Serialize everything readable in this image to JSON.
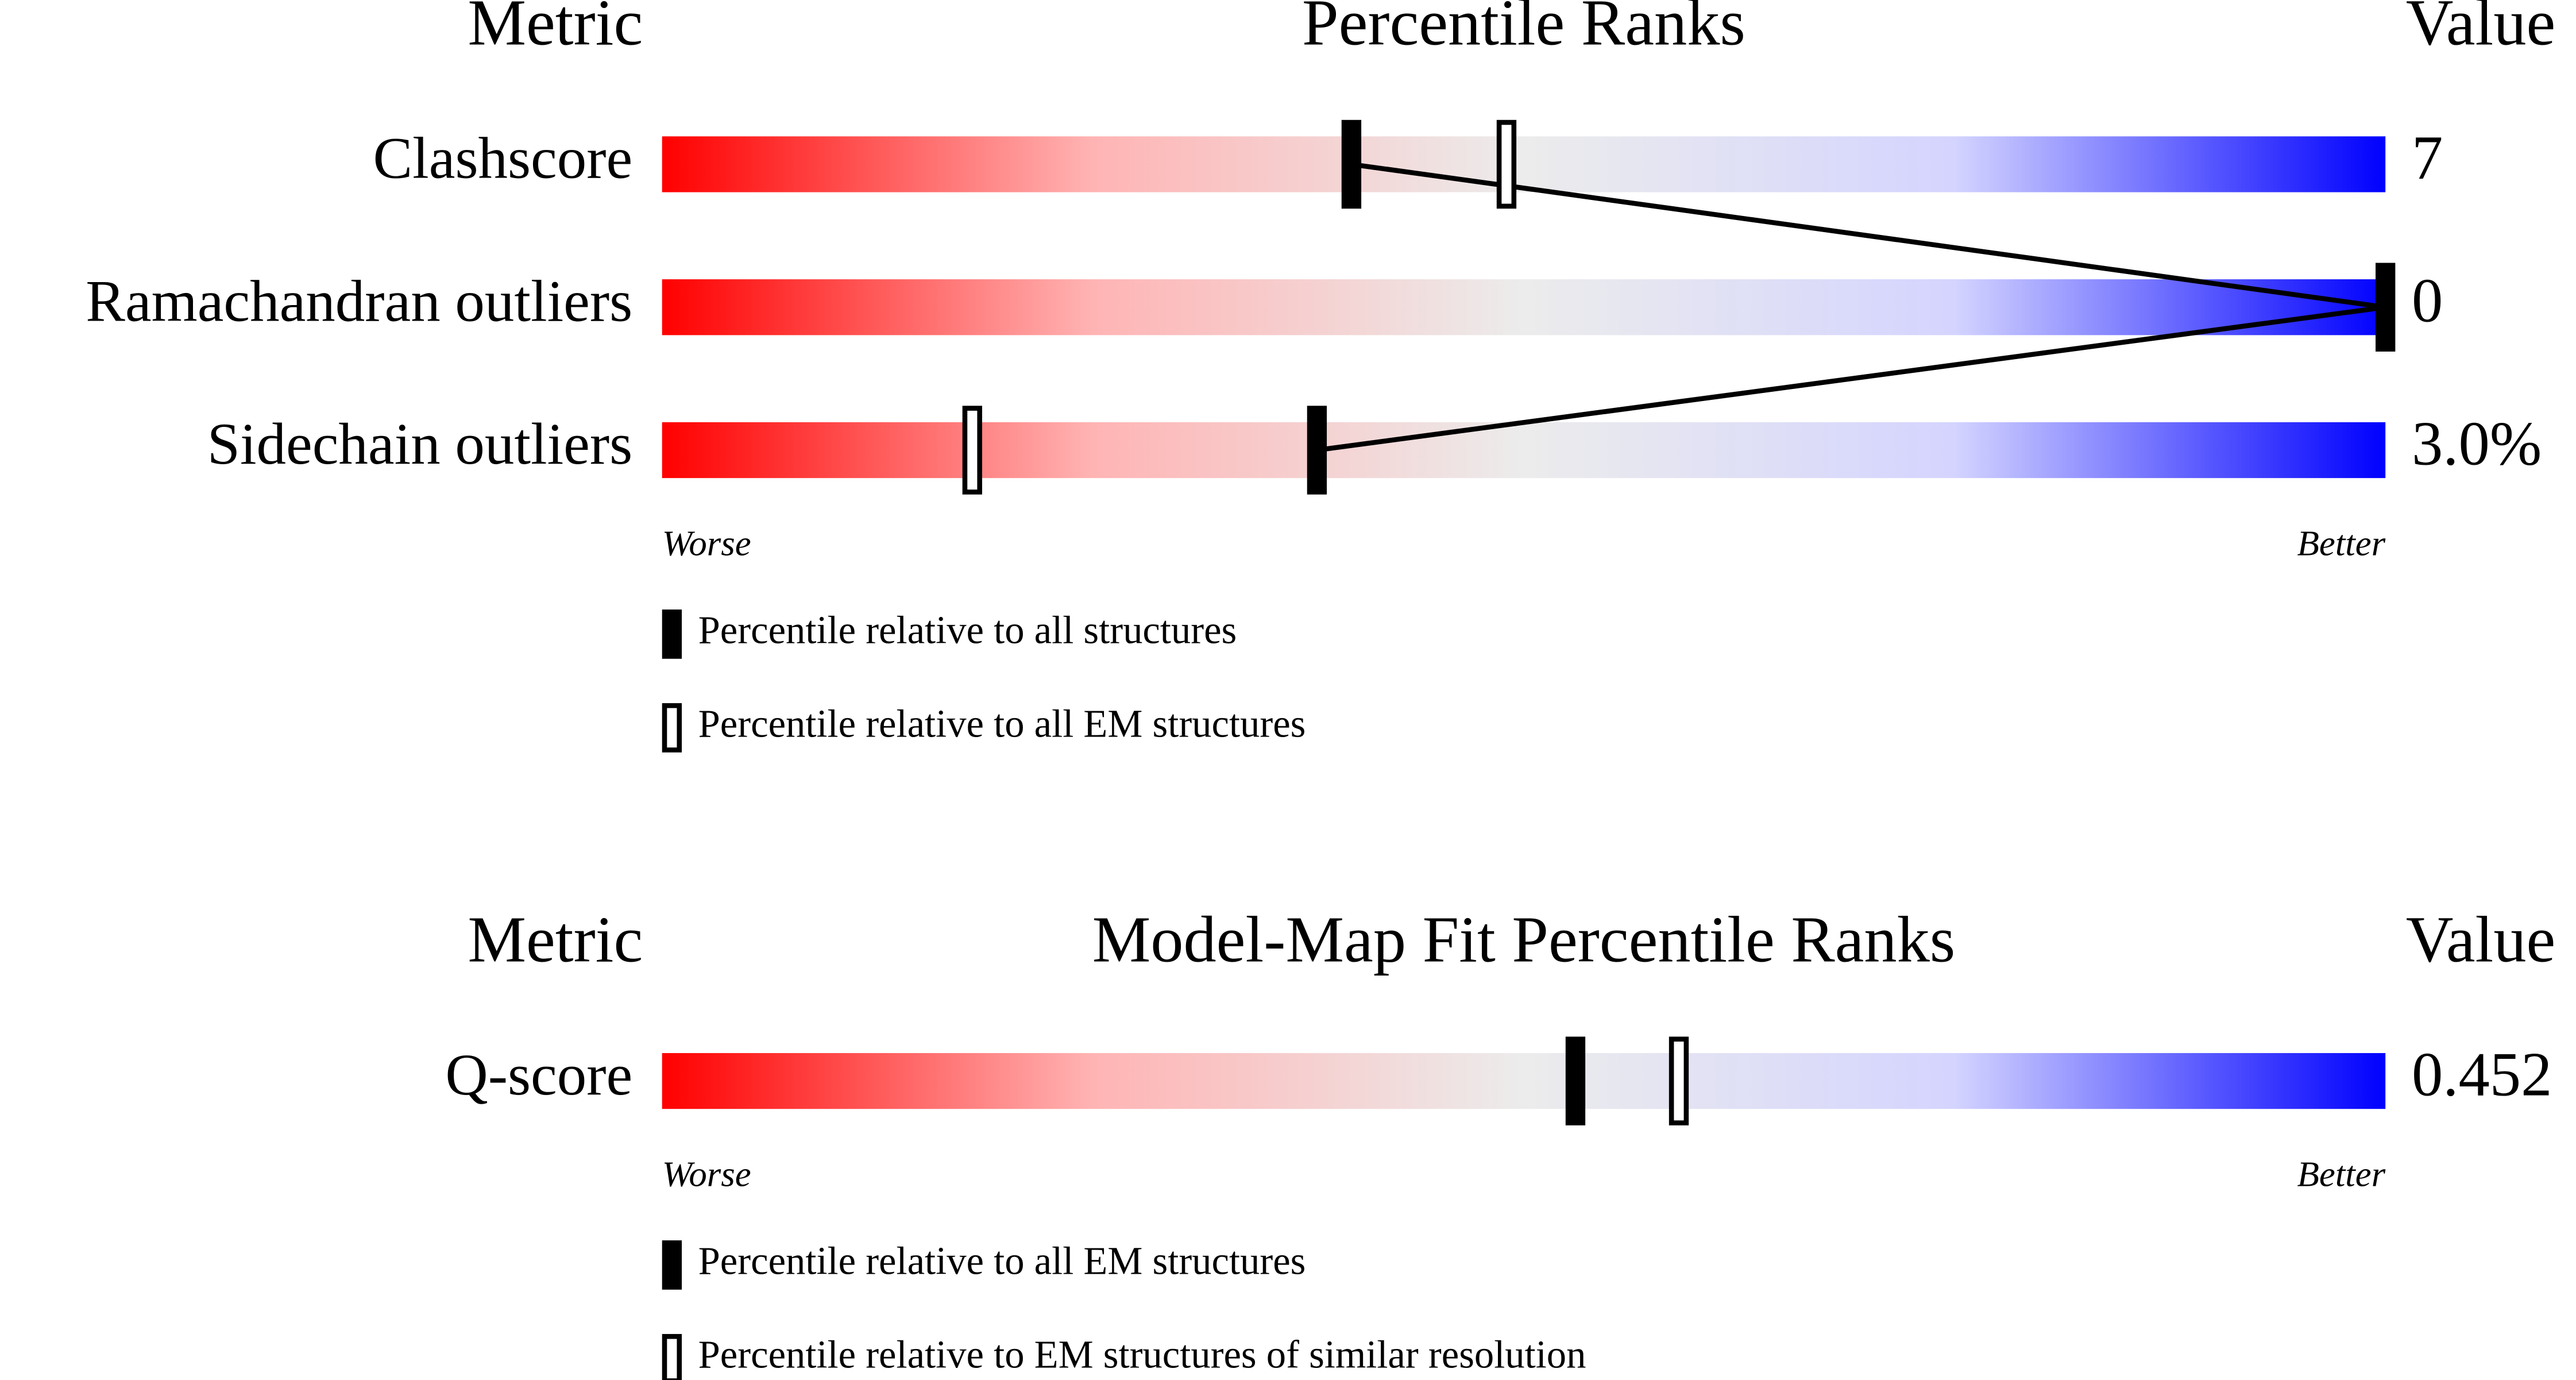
{
  "chart_data": [
    {
      "type": "percentile-slider",
      "metric_header": "Metric",
      "title": "Percentile Ranks",
      "value_header": "Value",
      "categories": [
        "Clashscore",
        "Ramachandran outliers",
        "Sidechain outliers"
      ],
      "value_labels": [
        "7",
        "0",
        "3.0%"
      ],
      "xlim": [
        0,
        100
      ],
      "series": [
        {
          "name": "Percentile relative to all structures",
          "style": "filled",
          "color": "#000000",
          "values": [
            40,
            100,
            38
          ]
        },
        {
          "name": "Percentile relative to all EM structures",
          "style": "hollow",
          "color": "#000000",
          "values": [
            49,
            null,
            18
          ]
        }
      ],
      "worse": "Worse",
      "better": "Better"
    },
    {
      "type": "percentile-slider",
      "metric_header": "Metric",
      "title": "Model-Map Fit Percentile Ranks",
      "value_header": "Value",
      "categories": [
        "Q-score"
      ],
      "value_labels": [
        "0.452"
      ],
      "xlim": [
        0,
        100
      ],
      "series": [
        {
          "name": "Percentile relative to all EM structures",
          "style": "filled",
          "color": "#000000",
          "values": [
            53
          ]
        },
        {
          "name": "Percentile relative to EM structures of similar resolution",
          "style": "hollow",
          "color": "#000000",
          "values": [
            59
          ]
        }
      ],
      "worse": "Worse",
      "better": "Better"
    }
  ]
}
